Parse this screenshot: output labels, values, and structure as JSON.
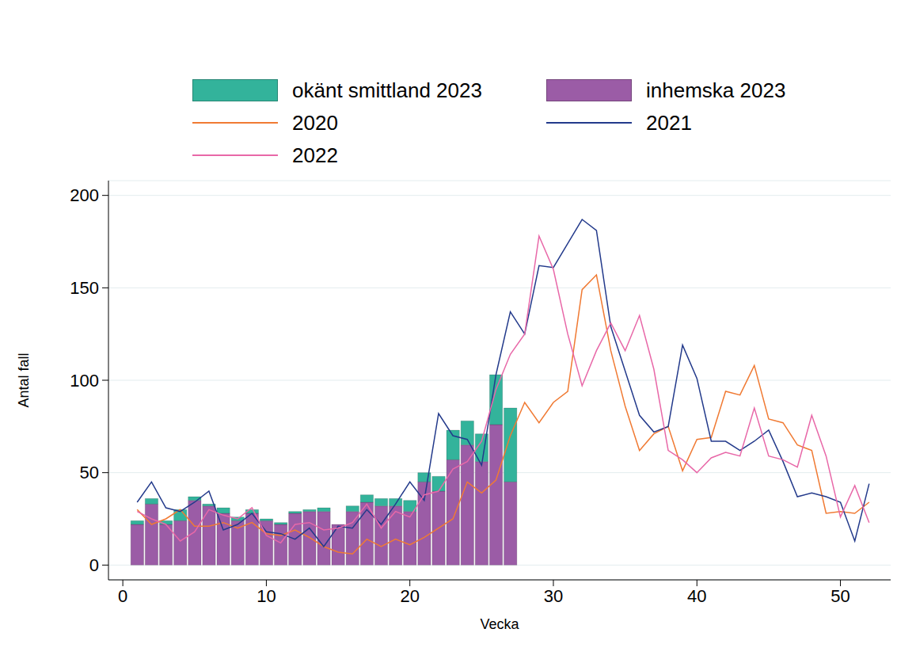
{
  "chart_data": {
    "type": "bar_line",
    "x_label": "Vecka",
    "y_label": "Antal fall",
    "x": [
      1,
      2,
      3,
      4,
      5,
      6,
      7,
      8,
      9,
      10,
      11,
      12,
      13,
      14,
      15,
      16,
      17,
      18,
      19,
      20,
      21,
      22,
      23,
      24,
      25,
      26,
      27,
      28,
      29,
      30,
      31,
      32,
      33,
      34,
      35,
      36,
      37,
      38,
      39,
      40,
      41,
      42,
      43,
      44,
      45,
      46,
      47,
      48,
      49,
      50,
      51,
      52
    ],
    "xlim": [
      -1,
      53.5
    ],
    "xticks": [
      0,
      10,
      20,
      30,
      40,
      50
    ],
    "ylim": [
      -8,
      208
    ],
    "yticks": [
      0,
      50,
      100,
      150,
      200
    ],
    "grid": true,
    "stacked": true,
    "legend": "top",
    "series": [
      {
        "name": "okänt smittland 2023",
        "type": "bar",
        "color": "#33b39b",
        "values": [
          2,
          3,
          2,
          6,
          2,
          1,
          3,
          2,
          2,
          1,
          1,
          1,
          1,
          2,
          0,
          3,
          4,
          4,
          4,
          6,
          5,
          8,
          16,
          13,
          15,
          27,
          40,
          null,
          null,
          null,
          null,
          null,
          null,
          null,
          null,
          null,
          null,
          null,
          null,
          null,
          null,
          null,
          null,
          null,
          null,
          null,
          null,
          null,
          null,
          null,
          null,
          null
        ]
      },
      {
        "name": "inhemska 2023",
        "type": "bar",
        "color": "#9b5ca6",
        "values": [
          22,
          33,
          22,
          24,
          35,
          32,
          28,
          24,
          28,
          24,
          22,
          28,
          29,
          29,
          22,
          29,
          34,
          32,
          32,
          29,
          45,
          40,
          57,
          65,
          56,
          76,
          45,
          null,
          null,
          null,
          null,
          null,
          null,
          null,
          null,
          null,
          null,
          null,
          null,
          null,
          null,
          null,
          null,
          null,
          null,
          null,
          null,
          null,
          null,
          null,
          null,
          null
        ]
      },
      {
        "name": "2020",
        "type": "line",
        "color": "#f07a33",
        "values": [
          30,
          22,
          25,
          30,
          21,
          21,
          23,
          20,
          23,
          17,
          16,
          19,
          15,
          10,
          7,
          6,
          14,
          10,
          14,
          11,
          15,
          20,
          25,
          45,
          39,
          46,
          70,
          88,
          77,
          88,
          94,
          149,
          157,
          116,
          86,
          62,
          71,
          75,
          51,
          68,
          69,
          94,
          92,
          108,
          79,
          77,
          65,
          62,
          28,
          29,
          28,
          34
        ]
      },
      {
        "name": "2021",
        "type": "line",
        "color": "#233a8b",
        "values": [
          34,
          45,
          31,
          29,
          34,
          40,
          19,
          22,
          28,
          18,
          17,
          14,
          20,
          10,
          21,
          20,
          30,
          22,
          33,
          45,
          35,
          82,
          70,
          68,
          54,
          103,
          137,
          125,
          162,
          161,
          174,
          187,
          181,
          129,
          105,
          81,
          72,
          75,
          119,
          101,
          67,
          67,
          62,
          67,
          73,
          56,
          37,
          39,
          37,
          34,
          13,
          44
        ]
      },
      {
        "name": "2022",
        "type": "line",
        "color": "#e868a8",
        "values": [
          29,
          25,
          22,
          13,
          18,
          30,
          27,
          25,
          31,
          16,
          12,
          22,
          23,
          19,
          20,
          23,
          33,
          20,
          29,
          26,
          38,
          40,
          52,
          56,
          67,
          95,
          114,
          125,
          178,
          160,
          125,
          97,
          116,
          131,
          116,
          135,
          106,
          62,
          57,
          50,
          58,
          61,
          59,
          85,
          59,
          57,
          53,
          81,
          59,
          26,
          43,
          23
        ]
      }
    ]
  }
}
